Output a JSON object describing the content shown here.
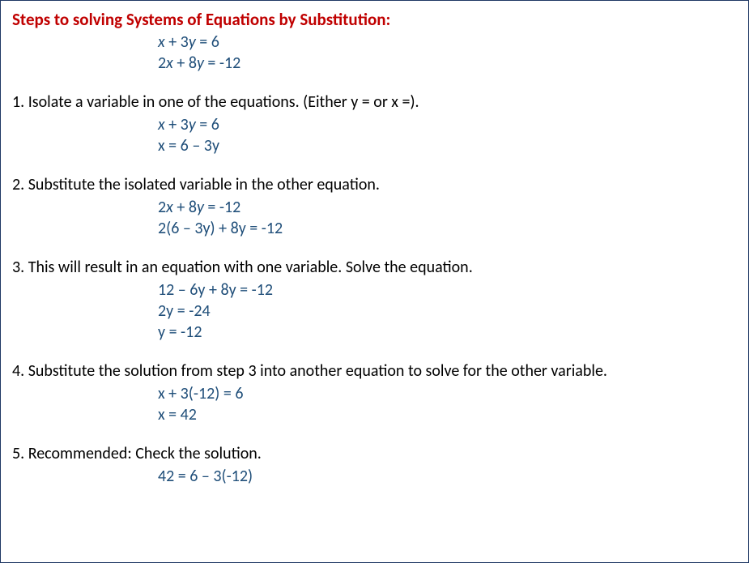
{
  "title": "Steps to solving Systems of Equations by Substitution:",
  "intro_eq1": {
    "a": "x",
    "b": " + 3",
    "c": "y",
    "d": " = 6"
  },
  "intro_eq2": {
    "a": "2",
    "b": "x",
    "c": " + 8",
    "d": "y",
    "e": " = -12"
  },
  "step1": {
    "text": "1. Isolate a variable in one of the equations. (Either y = or x =).",
    "eq1": {
      "a": "x",
      "b": " + 3",
      "c": "y",
      "d": " = 6"
    },
    "eq2": "x = 6 – 3y"
  },
  "step2": {
    "text": "2. Substitute the isolated variable in the other equation.",
    "eq1": {
      "a": "2",
      "b": "x",
      "c": " + 8",
      "d": "y",
      "e": " = -12"
    },
    "eq2": "2(6 – 3y) + 8y = -12"
  },
  "step3": {
    "text": "3. This will result in an equation with one variable. Solve the equation.",
    "eq1": "12 – 6y + 8y = -12",
    "eq2": "2y = -24",
    "eq3": "y = -12"
  },
  "step4": {
    "text": "4. Substitute the solution from step 3 into another equation to solve for the other variable.",
    "eq1": "x + 3(-12) = 6",
    "eq2": "x = 42"
  },
  "step5": {
    "text": "5. Recommended: Check the solution.",
    "eq1": "42 = 6 – 3(-12)"
  }
}
